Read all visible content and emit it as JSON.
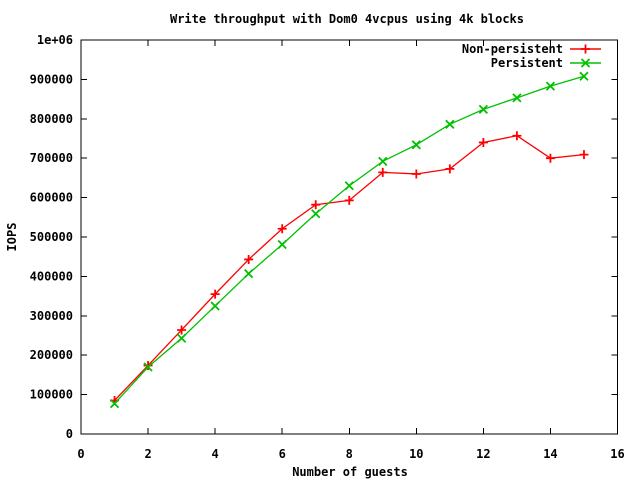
{
  "chart_data": {
    "type": "line",
    "title": "Write throughput with Dom0 4vcpus using 4k blocks",
    "xlabel": "Number of guests",
    "ylabel": "IOPS",
    "xlim": [
      0,
      16
    ],
    "ylim": [
      0,
      1000000
    ],
    "x_ticks": [
      0,
      2,
      4,
      6,
      8,
      10,
      12,
      14,
      16
    ],
    "x_tick_labels": [
      "0",
      "2",
      "4",
      "6",
      "8",
      "10",
      "12",
      "14",
      "16"
    ],
    "y_ticks": [
      0,
      100000,
      200000,
      300000,
      400000,
      500000,
      600000,
      700000,
      800000,
      900000,
      1000000
    ],
    "y_tick_labels": [
      "0",
      "100000",
      "200000",
      "300000",
      "400000",
      "500000",
      "600000",
      "700000",
      "800000",
      "900000",
      "1e+06"
    ],
    "grid": false,
    "legend_position": "top-right-inside",
    "x": [
      1,
      2,
      3,
      4,
      5,
      6,
      7,
      8,
      9,
      10,
      11,
      12,
      13,
      14,
      15
    ],
    "series": [
      {
        "name": "Non-persistent",
        "color": "#ff0000",
        "marker": "plus",
        "values": [
          85000,
          174000,
          264000,
          355000,
          443000,
          521000,
          582000,
          593000,
          664000,
          660000,
          673000,
          740000,
          757000,
          700000,
          709000
        ]
      },
      {
        "name": "Persistent",
        "color": "#00c000",
        "marker": "cross",
        "values": [
          77000,
          170000,
          243000,
          325000,
          407000,
          481000,
          559000,
          630000,
          692000,
          734000,
          786000,
          824000,
          853000,
          883000,
          908000
        ]
      }
    ],
    "text_color": "#000000",
    "background_color": "#ffffff"
  }
}
